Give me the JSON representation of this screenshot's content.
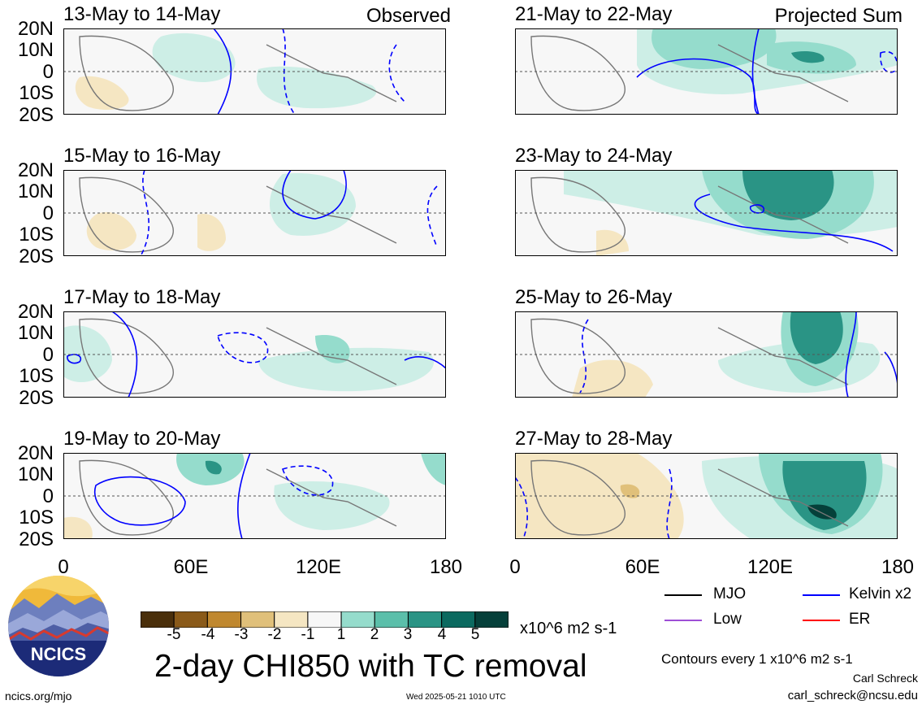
{
  "product": {
    "title": "2-day CHI850 with TC removal",
    "units": "x10^6 m2 s-1",
    "contour_note": "Contours every 1 x10^6 m2 s-1",
    "author": "Carl Schreck",
    "email": "carl_schreck@ncsu.edu",
    "site": "ncics.org/mjo",
    "timestamp": "Wed 2025-05-21 1010 UTC",
    "logo_text": "NCICS"
  },
  "columns": {
    "left_label": "Observed",
    "right_label": "Projected Sum"
  },
  "panels": {
    "left": [
      {
        "title": "13-May to 14-May"
      },
      {
        "title": "15-May to 16-May"
      },
      {
        "title": "17-May to 18-May"
      },
      {
        "title": "19-May to 20-May"
      }
    ],
    "right": [
      {
        "title": "21-May to 22-May"
      },
      {
        "title": "23-May to 24-May"
      },
      {
        "title": "25-May to 26-May"
      },
      {
        "title": "27-May to 28-May"
      }
    ]
  },
  "axes": {
    "lat_ticks": [
      "20N",
      "10N",
      "0",
      "10S",
      "20S"
    ],
    "lon_ticks": [
      "0",
      "60E",
      "120E",
      "180"
    ]
  },
  "colorbar": {
    "tick_labels": [
      "-5",
      "-4",
      "-3",
      "-2",
      "-1",
      "1",
      "2",
      "3",
      "4",
      "5"
    ],
    "colors": [
      "#4a2f0b",
      "#8a5a19",
      "#c0882f",
      "#e0c07a",
      "#f5e6c2",
      "#f7f7f7",
      "#cdeee6",
      "#95dccc",
      "#5bbfaa",
      "#2a9485",
      "#0b6a60",
      "#05403a"
    ]
  },
  "legend": {
    "mjo": "MJO",
    "kelvin": "Kelvin x2",
    "low": "Low",
    "er": "ER",
    "colors": {
      "mjo": "#000000",
      "kelvin": "#0000ff",
      "low": "#9e4fd6",
      "er": "#ff0000"
    }
  }
}
